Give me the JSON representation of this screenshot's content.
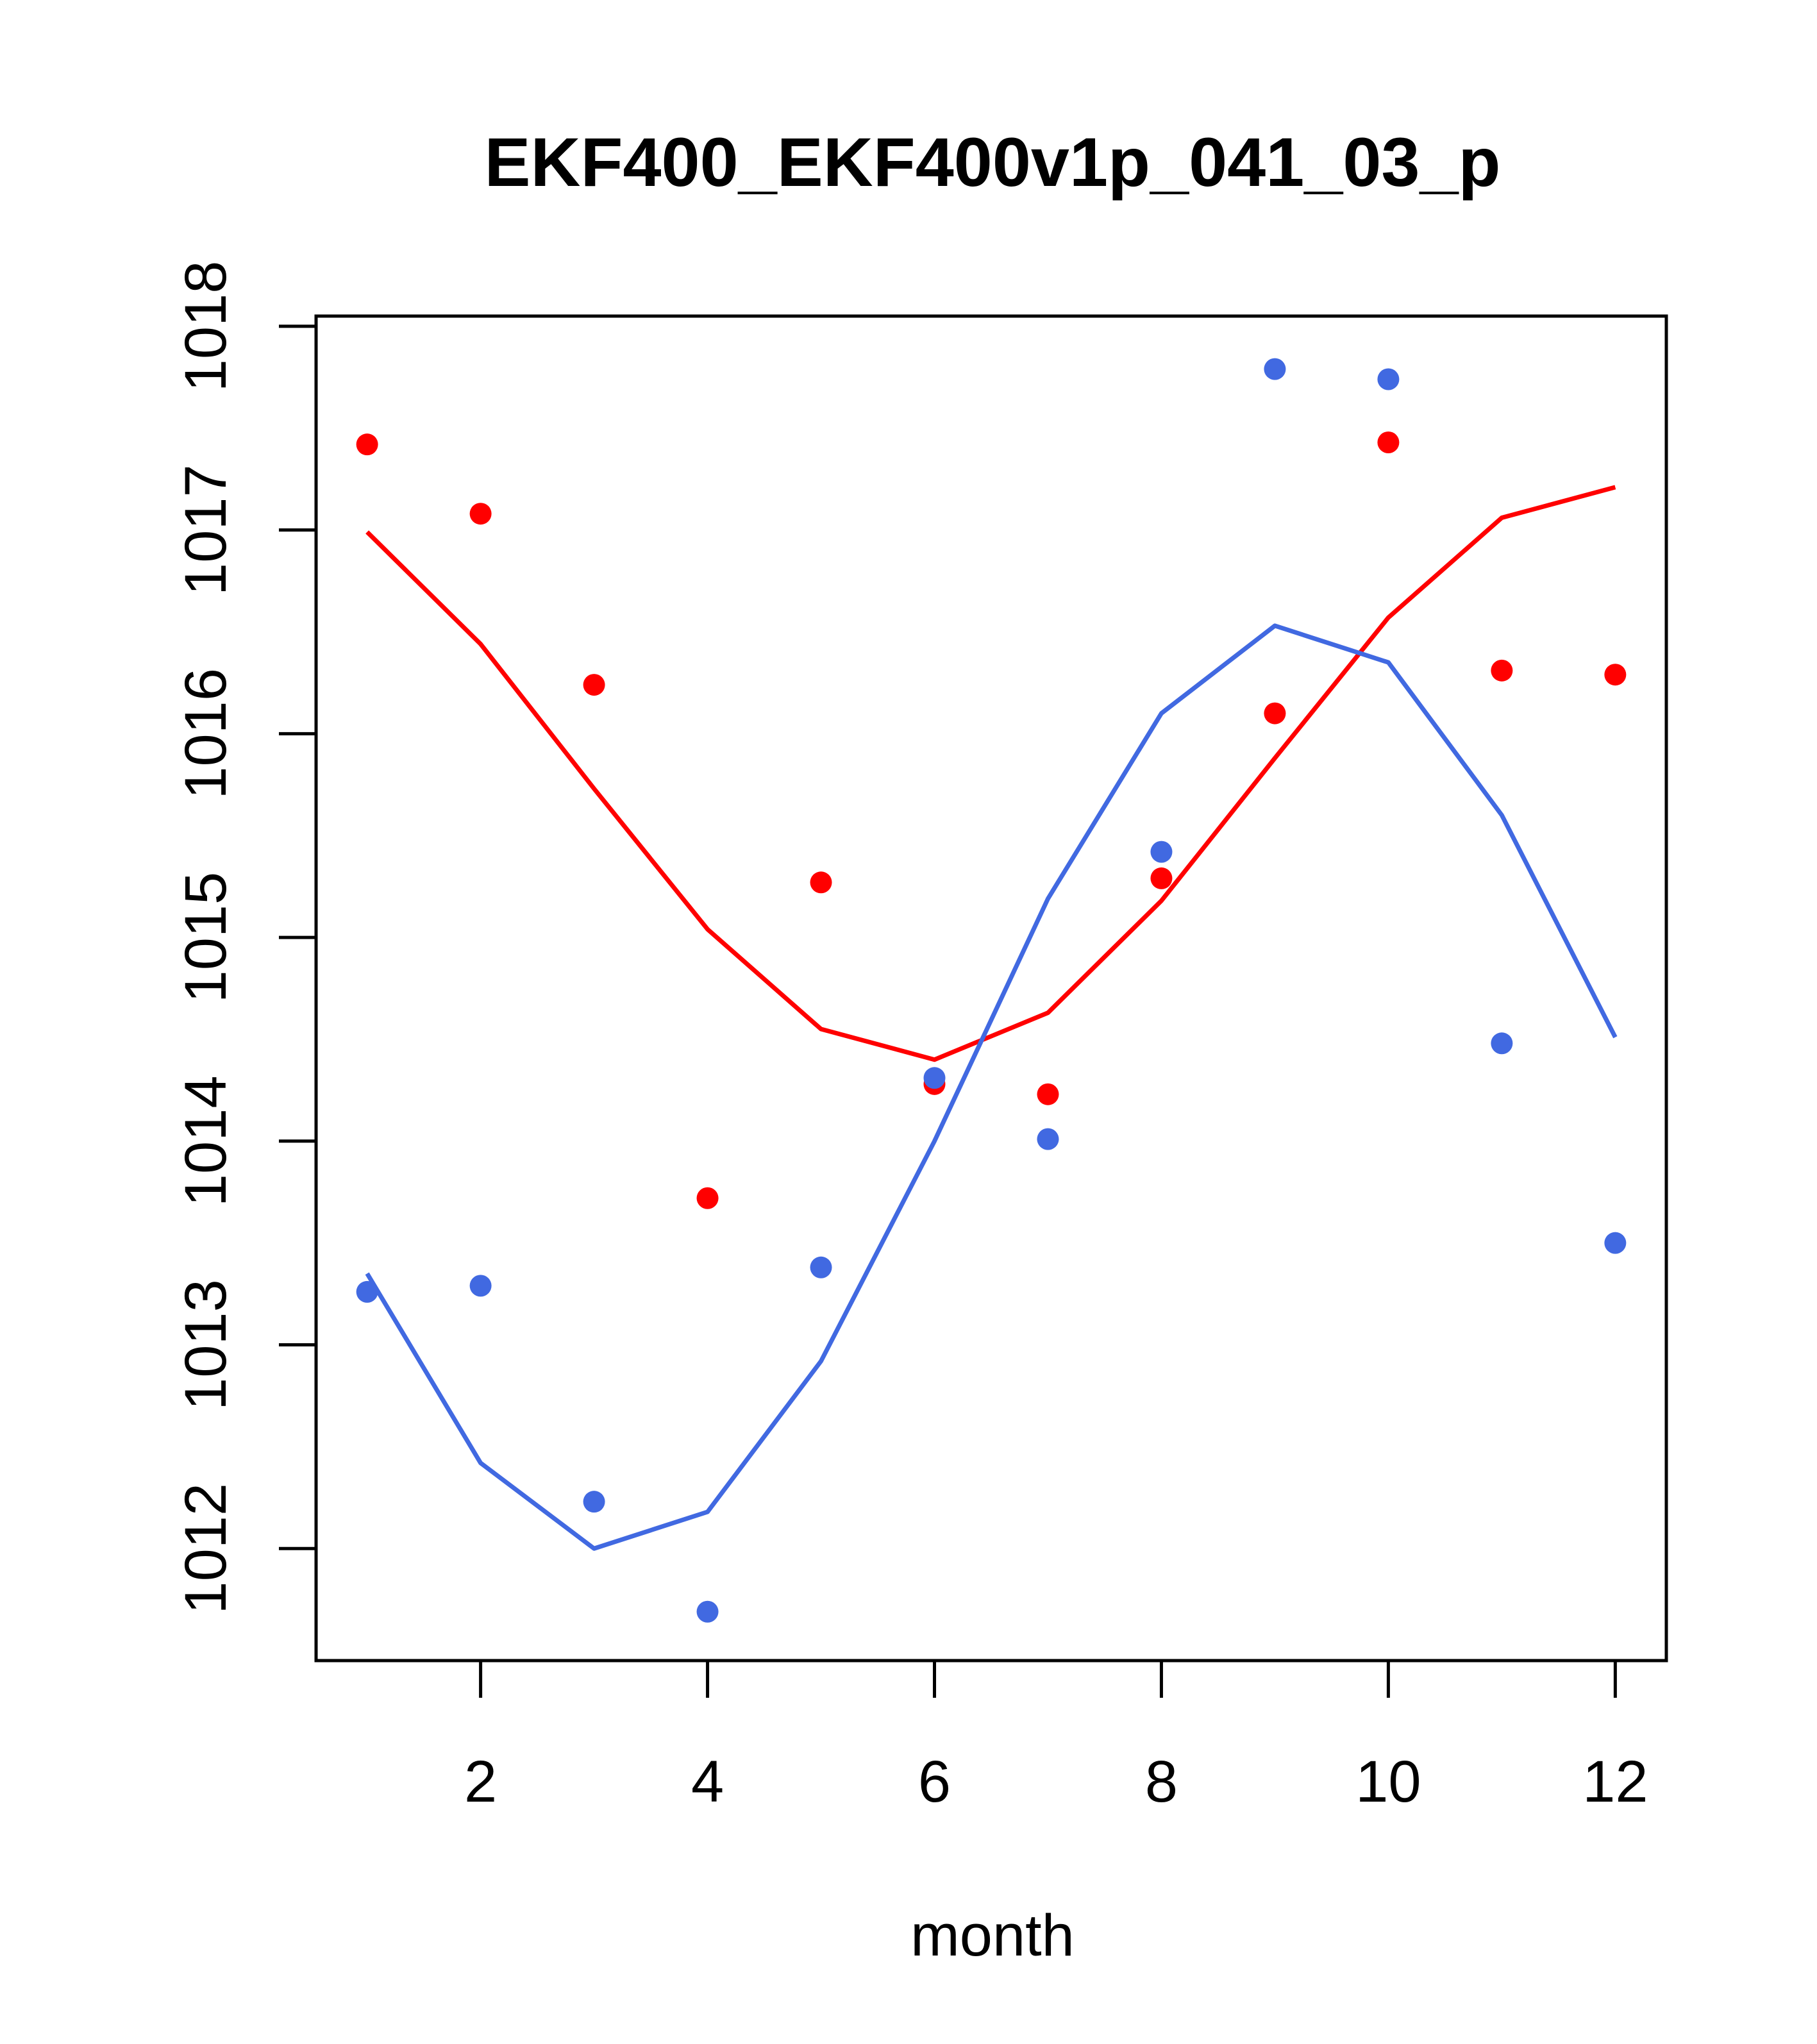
{
  "chart_data": {
    "type": "scatter",
    "title": "EKF400_EKF400v1p_041_03_p",
    "xlabel": "month",
    "ylabel": "",
    "xlim": [
      0.55,
      12.45
    ],
    "ylim": [
      1011.45,
      1018.05
    ],
    "xticks": [
      2,
      4,
      6,
      8,
      10,
      12
    ],
    "yticks": [
      1012,
      1013,
      1014,
      1015,
      1016,
      1017,
      1018
    ],
    "x": [
      1,
      2,
      3,
      4,
      5,
      6,
      7,
      8,
      9,
      10,
      11,
      12
    ],
    "series": [
      {
        "name": "red-points",
        "kind": "points",
        "color": "#ff0000",
        "values": [
          1017.42,
          1017.08,
          1016.24,
          1013.72,
          1015.27,
          1014.28,
          1014.23,
          1015.29,
          1016.1,
          1017.43,
          1016.31,
          1016.29
        ]
      },
      {
        "name": "blue-points",
        "kind": "points",
        "color": "#4169e1",
        "values": [
          1013.26,
          1013.29,
          1012.23,
          1011.69,
          1013.38,
          1014.31,
          1014.01,
          1015.42,
          1017.79,
          1017.74,
          1014.48,
          1013.5
        ]
      },
      {
        "name": "red-line",
        "kind": "line",
        "color": "#ff0000",
        "values": [
          1016.99,
          1016.44,
          1015.73,
          1015.04,
          1014.55,
          1014.4,
          1014.63,
          1015.18,
          1015.88,
          1016.57,
          1017.06,
          1017.21
        ]
      },
      {
        "name": "blue-line",
        "kind": "line",
        "color": "#4169e1",
        "values": [
          1013.35,
          1012.42,
          1012.0,
          1012.18,
          1012.92,
          1014.0,
          1015.19,
          1016.1,
          1016.53,
          1016.35,
          1015.6,
          1014.51
        ]
      }
    ]
  }
}
